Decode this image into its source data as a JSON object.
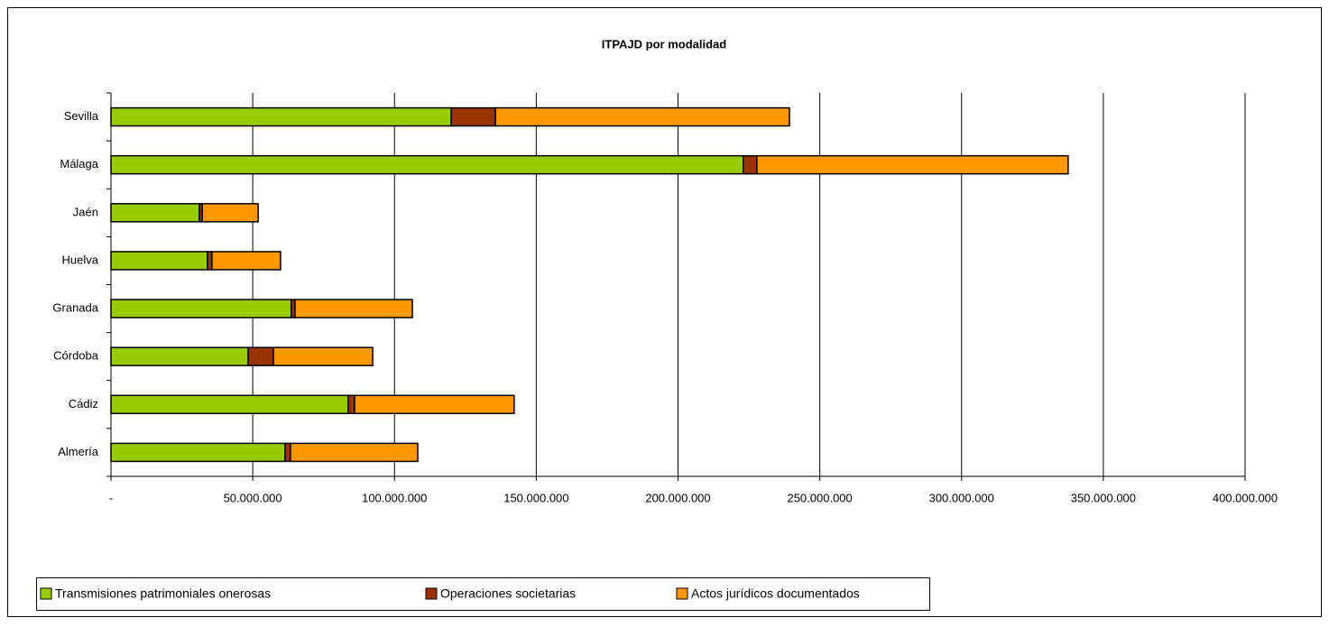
{
  "chart_data": {
    "type": "stacked-barh",
    "title": "ITPAJD por modalidad",
    "categories": [
      "Sevilla",
      "Málaga",
      "Jaén",
      "Huelva",
      "Granada",
      "Córdoba",
      "Cádiz",
      "Almería"
    ],
    "series": [
      {
        "name": "Transmisiones patrimoniales onerosas",
        "color": "#99cc00",
        "values": [
          120000000,
          223000000,
          31200000,
          34000000,
          63600000,
          48400000,
          83700000,
          61400000
        ]
      },
      {
        "name": "Operaciones societarias",
        "color": "#993300",
        "values": [
          15600000,
          4800000,
          1000000,
          1600000,
          1300000,
          8900000,
          2200000,
          1900000
        ]
      },
      {
        "name": "Actos jurídicos documentados",
        "color": "#ff9900",
        "values": [
          103700000,
          109800000,
          19700000,
          24200000,
          41400000,
          35000000,
          56300000,
          44900000
        ]
      }
    ],
    "xlim": [
      0,
      400000000
    ],
    "xticks": [
      {
        "value": 0,
        "label": "-"
      },
      {
        "value": 50000000,
        "label": "50.000.000"
      },
      {
        "value": 100000000,
        "label": "100.000.000"
      },
      {
        "value": 150000000,
        "label": "150.000.000"
      },
      {
        "value": 200000000,
        "label": "200.000.000"
      },
      {
        "value": 250000000,
        "label": "250.000.000"
      },
      {
        "value": 300000000,
        "label": "300.000.000"
      },
      {
        "value": 350000000,
        "label": "350.000.000"
      },
      {
        "value": 400000000,
        "label": "400.000.000"
      }
    ],
    "grid": true,
    "legend": "bottom"
  }
}
